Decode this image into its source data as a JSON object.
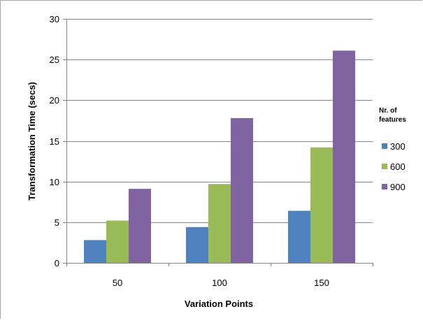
{
  "chart_data": {
    "type": "bar",
    "categories": [
      "50",
      "100",
      "150"
    ],
    "series": [
      {
        "name": "300",
        "values": [
          2.8,
          4.4,
          6.4
        ],
        "color": "#4f81bd"
      },
      {
        "name": "600",
        "values": [
          5.2,
          9.7,
          14.2
        ],
        "color": "#9bbb59"
      },
      {
        "name": "900",
        "values": [
          9.1,
          17.8,
          26.1
        ],
        "color": "#8064a2"
      }
    ],
    "title": "",
    "xlabel": "Variation Points",
    "ylabel": "Transformation Time (secs)",
    "ylim": [
      0,
      30
    ],
    "yticks": [
      0,
      5,
      10,
      15,
      20,
      25,
      30
    ],
    "grid": true,
    "legend": {
      "title_line1": "Nr. of",
      "title_line2": "features",
      "position": "right"
    }
  }
}
